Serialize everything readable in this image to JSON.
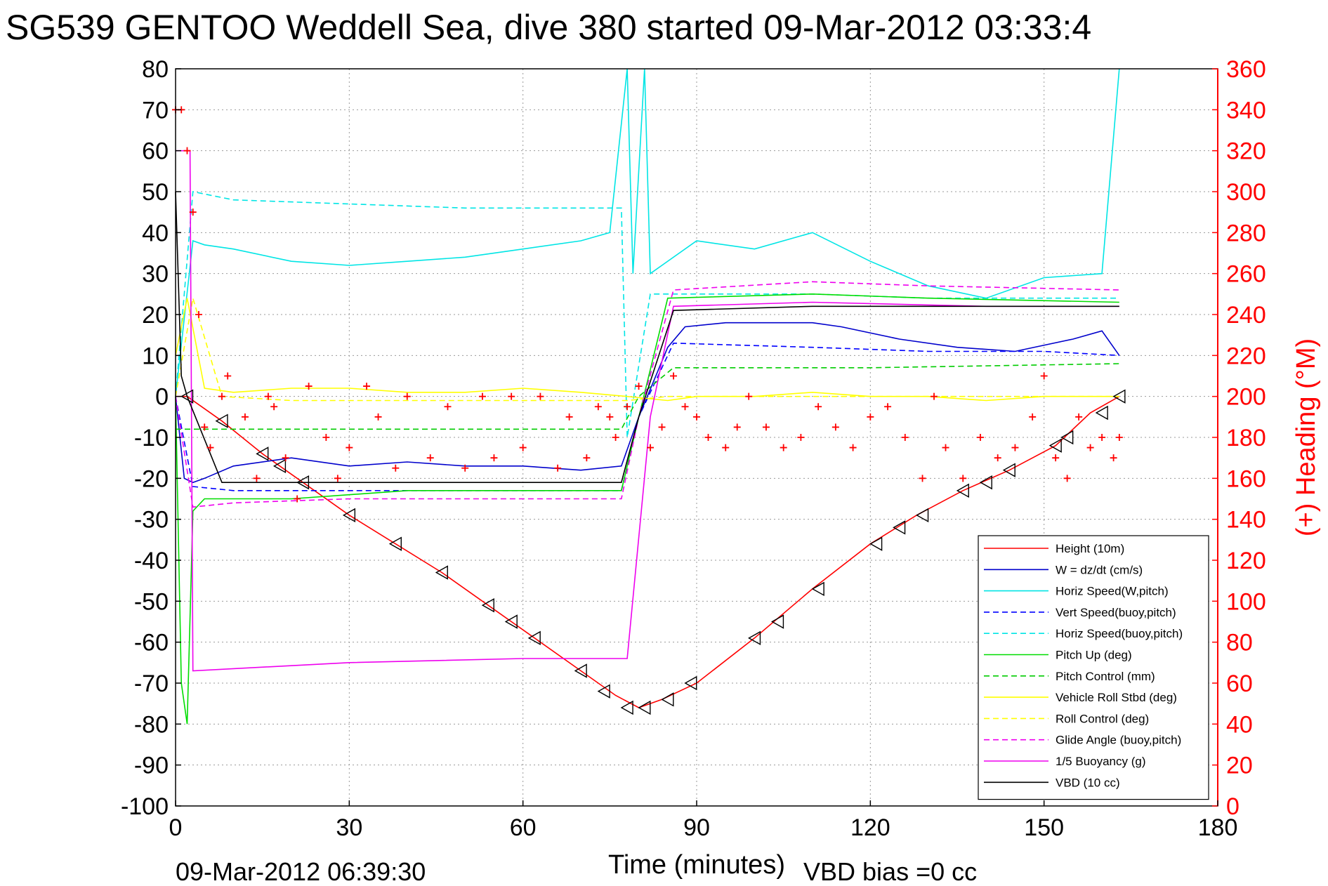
{
  "chart_data": {
    "type": "line",
    "title": "SG539 GENTOO Weddell Sea, dive 380 started 09-Mar-2012 03:33:4",
    "xlabel": "Time (minutes)",
    "ylabel_right": "(+) Heading (°M)",
    "footer_left": "09-Mar-2012 06:39:30",
    "footer_right": "VBD bias =0 cc",
    "xlim": [
      0,
      180
    ],
    "ylim_left": [
      -100,
      80
    ],
    "ylim_right": [
      0,
      360
    ],
    "xticks": [
      0,
      30,
      60,
      90,
      120,
      150,
      180
    ],
    "yticks_left": [
      -100,
      -90,
      -80,
      -70,
      -60,
      -50,
      -40,
      -30,
      -20,
      -10,
      0,
      10,
      20,
      30,
      40,
      50,
      60,
      70,
      80
    ],
    "yticks_right": [
      0,
      20,
      40,
      60,
      80,
      100,
      120,
      140,
      160,
      180,
      200,
      220,
      240,
      260,
      280,
      300,
      320,
      340,
      360
    ],
    "grid": true,
    "legend_position": "lower-right",
    "colors": {
      "height": "#ff0000",
      "w": "#0000cc",
      "horiz_speed": "#00e5e5",
      "vert_speed_buoy": "#0000ff",
      "horiz_speed_buoy": "#00e5e5",
      "pitch_up": "#00dd00",
      "pitch_control": "#00cc00",
      "roll": "#ffff00",
      "roll_control": "#ffff00",
      "glide_angle": "#ee00ee",
      "buoyancy": "#ee00ee",
      "vbd": "#000000",
      "heading": "#ff0000",
      "axis_right": "#ff0000"
    },
    "series": [
      {
        "name": "Height (10m)",
        "style": "solid",
        "color_key": "height",
        "x": [
          0,
          2,
          8,
          15,
          22,
          30,
          38,
          46,
          54,
          62,
          70,
          76,
          80,
          84,
          90,
          100,
          110,
          120,
          128,
          136,
          144,
          152,
          158,
          163
        ],
        "y": [
          0,
          0,
          -6,
          -14,
          -21,
          -29,
          -36,
          -43,
          -51,
          -59,
          -67,
          -73,
          -76,
          -74,
          -70,
          -59,
          -47,
          -36,
          -29,
          -23,
          -18,
          -12,
          -4,
          0
        ]
      },
      {
        "name": "W = dz/dt (cm/s)",
        "style": "solid",
        "color_key": "w",
        "x": [
          0,
          1.5,
          3,
          5,
          10,
          20,
          30,
          40,
          50,
          60,
          70,
          77,
          80,
          85,
          88,
          95,
          105,
          110,
          115,
          125,
          135,
          145,
          155,
          160,
          163
        ],
        "y": [
          0,
          -20,
          -21,
          -20,
          -17,
          -15,
          -17,
          -16,
          -17,
          -17,
          -18,
          -17,
          -5,
          12,
          17,
          18,
          18,
          18,
          17,
          14,
          12,
          11,
          14,
          16,
          10
        ]
      },
      {
        "name": "Horiz Speed(W,pitch)",
        "style": "solid",
        "color_key": "horiz_speed",
        "x": [
          0,
          3,
          5,
          10,
          20,
          30,
          40,
          50,
          60,
          70,
          75,
          78,
          79,
          81,
          82,
          84,
          90,
          100,
          110,
          120,
          130,
          140,
          150,
          160,
          163
        ],
        "y": [
          0,
          38,
          37,
          36,
          33,
          32,
          33,
          34,
          36,
          38,
          40,
          80,
          30,
          80,
          30,
          32,
          38,
          36,
          40,
          33,
          27,
          24,
          29,
          30,
          80
        ]
      },
      {
        "name": "Vert Speed(buoy,pitch)",
        "style": "dashed",
        "color_key": "vert_speed_buoy",
        "x": [
          0,
          3,
          10,
          40,
          77,
          80,
          86,
          110,
          130,
          150,
          163
        ],
        "y": [
          0,
          -22,
          -23,
          -23,
          -23,
          -5,
          13,
          12,
          11,
          11,
          10
        ]
      },
      {
        "name": "Horiz Speed(buoy,pitch)",
        "style": "dashed",
        "color_key": "horiz_speed_buoy",
        "x": [
          0,
          3,
          10,
          30,
          50,
          70,
          77,
          78,
          82,
          86,
          110,
          130,
          163
        ],
        "y": [
          0,
          50,
          48,
          47,
          46,
          46,
          46,
          -10,
          25,
          25,
          25,
          24,
          24
        ]
      },
      {
        "name": "Pitch Up (deg)",
        "style": "solid",
        "color_key": "pitch_up",
        "x": [
          0,
          1,
          2,
          3,
          5,
          20,
          40,
          60,
          77,
          80,
          85,
          110,
          130,
          163
        ],
        "y": [
          0,
          -70,
          -80,
          -28,
          -25,
          -25,
          -23,
          -23,
          -23,
          -5,
          24,
          25,
          24,
          23
        ]
      },
      {
        "name": "Pitch Control (mm)",
        "style": "dashed",
        "color_key": "pitch_control",
        "x": [
          0,
          3,
          77,
          80,
          86,
          120,
          163
        ],
        "y": [
          -8,
          -8,
          -8,
          0,
          7,
          7,
          8
        ]
      },
      {
        "name": "Vehicle Roll Stbd (deg)",
        "style": "solid",
        "color_key": "roll",
        "x": [
          0,
          2,
          5,
          10,
          20,
          30,
          40,
          50,
          60,
          70,
          78,
          85,
          90,
          100,
          110,
          120,
          130,
          140,
          150,
          160,
          163
        ],
        "y": [
          10,
          24,
          2,
          1,
          2,
          2,
          1,
          1,
          2,
          1,
          0,
          -1,
          0,
          0,
          1,
          0,
          0,
          -1,
          0,
          0,
          0
        ]
      },
      {
        "name": "Roll Control (deg)",
        "style": "dashed",
        "color_key": "roll_control",
        "x": [
          0,
          3,
          8,
          20,
          40,
          60,
          78,
          85,
          110,
          140,
          163
        ],
        "y": [
          0,
          24,
          0,
          -1,
          -1,
          -1,
          -1,
          0,
          0,
          0,
          0
        ]
      },
      {
        "name": "Glide Angle (buoy,pitch)",
        "style": "dashed",
        "color_key": "glide_angle",
        "x": [
          0,
          3,
          10,
          30,
          50,
          70,
          77,
          80,
          86,
          110,
          130,
          163
        ],
        "y": [
          0,
          -27,
          -26,
          -25,
          -25,
          -25,
          -25,
          -5,
          26,
          28,
          27,
          26
        ]
      },
      {
        "name": "1/5 Buoyancy (g)",
        "style": "solid",
        "color_key": "buoyancy",
        "x": [
          0,
          2.5,
          3,
          30,
          60,
          78,
          82,
          86,
          110,
          140,
          163
        ],
        "y": [
          60,
          60,
          -67,
          -65,
          -64,
          -64,
          -5,
          22,
          23,
          22,
          22
        ]
      },
      {
        "name": "VBD (10 cc)",
        "style": "solid",
        "color_key": "vbd",
        "x": [
          0,
          1,
          2,
          8,
          30,
          60,
          77,
          80,
          86,
          110,
          140,
          163
        ],
        "y": [
          50,
          5,
          0,
          -21,
          -21,
          -21,
          -21,
          -5,
          21,
          22,
          22,
          22
        ]
      }
    ],
    "heading_series": {
      "name": "(+) Heading",
      "axis": "right",
      "marker": "+",
      "x": [
        0,
        1,
        2,
        3,
        4,
        5,
        6,
        8,
        9,
        12,
        14,
        16,
        17,
        19,
        21,
        23,
        26,
        28,
        30,
        33,
        35,
        38,
        40,
        44,
        47,
        50,
        53,
        55,
        58,
        60,
        63,
        66,
        68,
        71,
        73,
        75,
        76,
        78,
        80,
        82,
        84,
        86,
        88,
        90,
        92,
        95,
        97,
        99,
        102,
        105,
        108,
        111,
        114,
        117,
        120,
        123,
        126,
        129,
        131,
        133,
        136,
        139,
        142,
        145,
        148,
        150,
        152,
        154,
        156,
        158,
        160,
        162,
        163
      ],
      "y": [
        340,
        340,
        320,
        290,
        240,
        185,
        175,
        200,
        210,
        190,
        160,
        200,
        195,
        170,
        150,
        205,
        180,
        160,
        175,
        205,
        190,
        165,
        200,
        170,
        195,
        165,
        200,
        170,
        200,
        175,
        200,
        165,
        190,
        170,
        195,
        190,
        180,
        195,
        205,
        175,
        185,
        210,
        195,
        190,
        180,
        175,
        185,
        200,
        185,
        175,
        180,
        195,
        185,
        175,
        190,
        195,
        180,
        160,
        200,
        175,
        160,
        180,
        170,
        175,
        190,
        210,
        170,
        160,
        190,
        175,
        180,
        170,
        180
      ]
    },
    "height_markers": {
      "marker": "triangle",
      "x": [
        2,
        8,
        15,
        18,
        22,
        30,
        38,
        46,
        54,
        58,
        62,
        70,
        74,
        78,
        81,
        85,
        89,
        100,
        104,
        111,
        121,
        125,
        129,
        136,
        140,
        144,
        152,
        154,
        160,
        163
      ],
      "y": [
        0,
        -6,
        -14,
        -17,
        -21,
        -29,
        -36,
        -43,
        -51,
        -55,
        -59,
        -67,
        -72,
        -76,
        -76,
        -74,
        -70,
        -59,
        -55,
        -47,
        -36,
        -32,
        -29,
        -23,
        -21,
        -18,
        -12,
        -10,
        -4,
        0
      ]
    }
  }
}
